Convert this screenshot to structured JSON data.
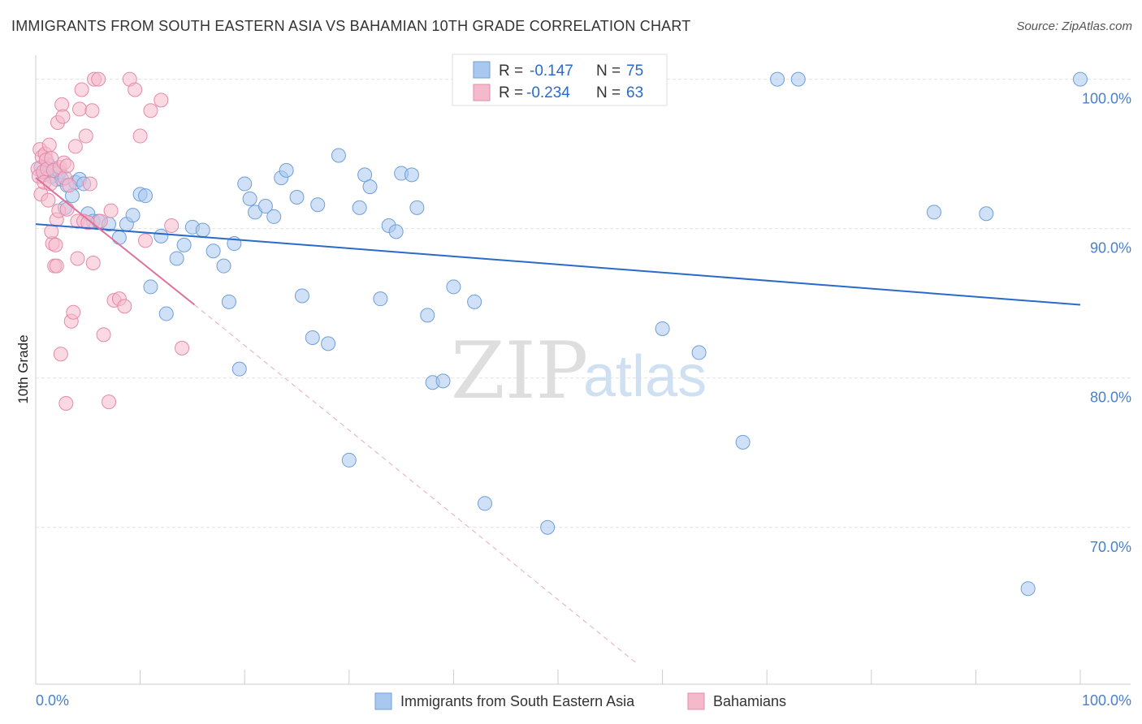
{
  "title": "IMMIGRANTS FROM SOUTH EASTERN ASIA VS BAHAMIAN 10TH GRADE CORRELATION CHART",
  "source": "Source: ZipAtlas.com",
  "watermark": {
    "zip": "ZIP",
    "atlas": "atlas"
  },
  "legend": {
    "rows": [
      {
        "r_label": "R =",
        "r_value": "-0.147",
        "n_label": "N =",
        "n_value": "75",
        "color": "#a9c8f0"
      },
      {
        "r_label": "R =",
        "r_value": "-0.234",
        "n_label": "N =",
        "n_value": "63",
        "color": "#f5b9cc"
      }
    ]
  },
  "chart_data": {
    "type": "scatter",
    "title": "IMMIGRANTS FROM SOUTH EASTERN ASIA VS BAHAMIAN 10TH GRADE CORRELATION CHART",
    "xlabel": "",
    "ylabel": "10th Grade",
    "xlim": [
      0,
      100
    ],
    "ylim": [
      59.5,
      101.5
    ],
    "x_ticks": [
      "0.0%",
      "100.0%"
    ],
    "y_ticks": [
      {
        "value": 100,
        "label": "100.0%"
      },
      {
        "value": 90,
        "label": "90.0%"
      },
      {
        "value": 80,
        "label": "80.0%"
      },
      {
        "value": 70,
        "label": "70.0%"
      }
    ],
    "grid": true,
    "legend_position": "top-center",
    "series": [
      {
        "name": "Immigrants from South Eastern Asia",
        "color": "#a9c8f0",
        "stroke": "#6f9fd8",
        "trend": {
          "x0": 0,
          "y0": 90.3,
          "x1": 100,
          "y1": 84.9,
          "color": "#2a6bc9"
        },
        "x": [
          0.5,
          0.8,
          1.0,
          1.2,
          1.5,
          1.8,
          2.0,
          2.3,
          2.5,
          3.0,
          3.5,
          3.8,
          4.2,
          4.6,
          5.0,
          5.5,
          6.0,
          7.0,
          8.0,
          8.7,
          9.3,
          10.0,
          10.5,
          11.0,
          12.0,
          12.5,
          13.5,
          14.2,
          15.0,
          16.0,
          17.0,
          18.0,
          18.5,
          19.0,
          19.5,
          20.0,
          20.5,
          21.0,
          22.0,
          22.8,
          23.5,
          24.0,
          25.0,
          25.5,
          26.5,
          27.0,
          28.0,
          29.0,
          30.0,
          31.0,
          31.5,
          32.0,
          33.0,
          33.8,
          34.5,
          35.0,
          36.0,
          36.5,
          37.5,
          38.0,
          39.0,
          40.0,
          42.0,
          43.0,
          49.0,
          60.0,
          63.5,
          67.7,
          71.0,
          73.0,
          100.0,
          95.0,
          91.0,
          86.0,
          2.8
        ],
        "y": [
          94.1,
          93.6,
          93.8,
          94.3,
          93.5,
          94.0,
          93.3,
          93.8,
          93.3,
          92.9,
          92.2,
          93.1,
          93.3,
          93.0,
          91.0,
          90.5,
          90.5,
          90.3,
          89.4,
          90.3,
          90.9,
          92.3,
          92.2,
          86.1,
          89.5,
          84.3,
          88.0,
          88.9,
          90.1,
          89.9,
          88.5,
          87.5,
          85.1,
          89.0,
          80.6,
          93.0,
          92.0,
          91.1,
          91.5,
          90.8,
          93.4,
          93.9,
          92.1,
          85.5,
          82.7,
          91.6,
          82.3,
          94.9,
          74.5,
          91.4,
          93.6,
          92.8,
          85.3,
          90.2,
          89.8,
          93.7,
          93.6,
          91.4,
          84.2,
          79.7,
          79.8,
          86.1,
          85.1,
          71.6,
          70.0,
          83.3,
          81.7,
          75.7,
          100.0,
          100.0,
          100.0,
          65.9,
          91.0,
          91.1,
          91.4
        ],
        "values_note": ""
      },
      {
        "name": "Bahamians",
        "color": "#f5b9cc",
        "stroke": "#e58aa8",
        "trend": {
          "x0": 0,
          "y0": 93.4,
          "x1": 15.2,
          "y1": 84.9,
          "color": "#e0709a"
        },
        "trend_ext": {
          "x0": 15.2,
          "y0": 84.9,
          "x1": 57.7,
          "y1": 60.8
        },
        "x": [
          0.2,
          0.3,
          0.4,
          0.5,
          0.6,
          0.7,
          0.8,
          0.9,
          1.0,
          1.1,
          1.2,
          1.3,
          1.4,
          1.5,
          1.6,
          1.7,
          1.8,
          1.9,
          2.0,
          2.1,
          2.2,
          2.3,
          2.4,
          2.5,
          2.6,
          2.7,
          2.8,
          2.9,
          3.0,
          3.2,
          3.4,
          3.6,
          3.8,
          4.0,
          4.2,
          4.4,
          4.6,
          4.8,
          5.0,
          5.2,
          5.4,
          5.6,
          6.0,
          6.5,
          7.0,
          7.5,
          8.0,
          8.5,
          9.0,
          9.5,
          10.0,
          11.0,
          12.0,
          13.0,
          14.0,
          2.0,
          1.5,
          3.0,
          4.0,
          5.5,
          6.2,
          7.2,
          10.5
        ],
        "y": [
          94.0,
          93.5,
          95.3,
          92.3,
          94.8,
          93.8,
          93.1,
          95.0,
          94.6,
          94.0,
          91.9,
          95.6,
          93.0,
          94.7,
          89.0,
          93.9,
          87.5,
          88.9,
          90.6,
          97.1,
          91.2,
          94.1,
          81.6,
          98.3,
          97.5,
          94.4,
          93.4,
          78.3,
          94.2,
          92.9,
          83.8,
          84.4,
          95.5,
          90.5,
          98.0,
          99.3,
          90.5,
          96.2,
          90.4,
          93.0,
          97.9,
          100.0,
          100.0,
          82.9,
          78.4,
          85.2,
          85.3,
          84.8,
          100.0,
          99.3,
          96.2,
          97.9,
          98.6,
          90.2,
          82.0,
          87.5,
          89.8,
          91.3,
          88.0,
          87.7,
          90.5,
          91.2,
          89.2
        ],
        "values_note": ""
      }
    ]
  },
  "bottom_legend": [
    {
      "label": "Immigrants from South Eastern Asia",
      "color": "#a9c8f0"
    },
    {
      "label": "Bahamians",
      "color": "#f5b9cc"
    }
  ]
}
